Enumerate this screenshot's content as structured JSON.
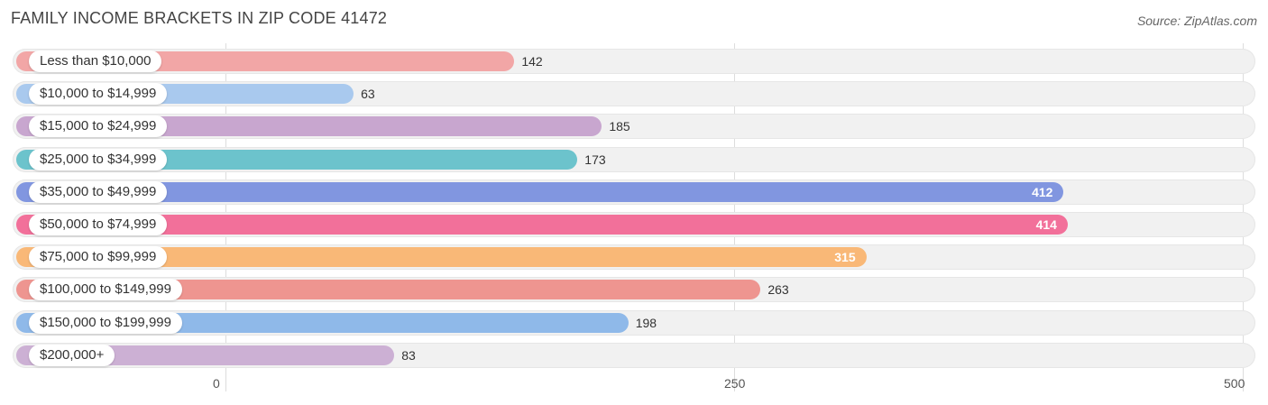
{
  "title": "FAMILY INCOME BRACKETS IN ZIP CODE 41472",
  "source": "Source: ZipAtlas.com",
  "chart_data": {
    "type": "bar",
    "orientation": "horizontal",
    "title": "FAMILY INCOME BRACKETS IN ZIP CODE 41472",
    "categories": [
      "Less than $10,000",
      "$10,000 to $14,999",
      "$15,000 to $24,999",
      "$25,000 to $34,999",
      "$35,000 to $49,999",
      "$50,000 to $74,999",
      "$75,000 to $99,999",
      "$100,000 to $149,999",
      "$150,000 to $199,999",
      "$200,000+"
    ],
    "values": [
      142,
      63,
      185,
      173,
      412,
      414,
      315,
      263,
      198,
      83
    ],
    "colors": [
      "#f2a6a6",
      "#a9c9ee",
      "#c8a6cf",
      "#6cc3cc",
      "#8196e0",
      "#f2709a",
      "#f9b877",
      "#ee9590",
      "#8fb9e9",
      "#ccb0d4"
    ],
    "xlim": [
      0,
      500
    ],
    "ticks": [
      "0",
      "250",
      "500"
    ],
    "xlabel": "",
    "ylabel": "",
    "grid": true
  }
}
